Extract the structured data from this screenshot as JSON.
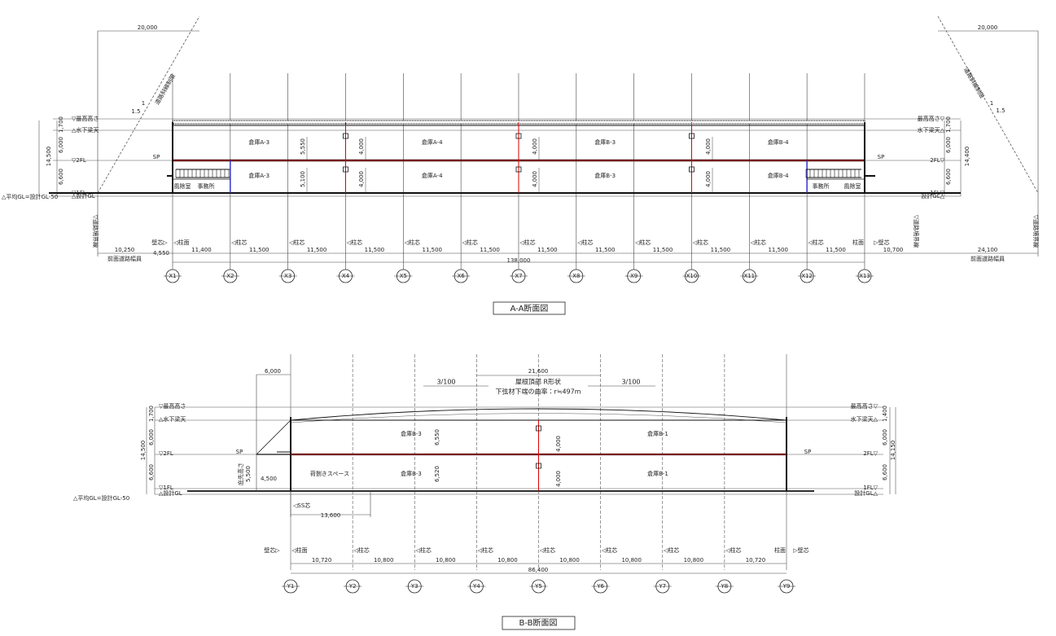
{
  "aa": {
    "title": "A-A断面図",
    "top_dims": [
      "20,000",
      "20,000"
    ],
    "levels_left": [
      "▽最高高さ",
      "△水下梁天",
      "▽2FL",
      "▽1FL",
      "△設計GL"
    ],
    "levels_right": [
      "最高高さ▽",
      "水下梁天△",
      "2FL▽",
      "1FL▽",
      "設計GL△"
    ],
    "avg_gl": "△平均GL=設計GL-50",
    "heights_left": {
      "total": "14,500",
      "parts": [
        "1,700",
        "6,000",
        "6,600"
      ]
    },
    "heights_right": {
      "total": "14,400",
      "parts": [
        "1,700",
        "6,000",
        "6,600"
      ]
    },
    "slope_left": [
      "1",
      "1.5"
    ],
    "slope_right": [
      "1",
      "1.5"
    ],
    "road_limit": [
      "道路斜線制限",
      "道路斜線制限"
    ],
    "road_boundary": [
      "▽道路境界線",
      "▽道路境界線",
      "▽道路境界線"
    ],
    "road_width": [
      "前面道路幅員",
      "前面道路幅員"
    ],
    "setbacks": [
      "10,250",
      "4,550",
      "10,700",
      "24,100"
    ],
    "grid": [
      "X1",
      "X2",
      "X3",
      "X4",
      "X5",
      "X6",
      "X7",
      "X8",
      "X9",
      "X10",
      "X11",
      "X12",
      "X13"
    ],
    "spans": [
      "11,400",
      "11,500",
      "11,500",
      "11,500",
      "11,500",
      "11,500",
      "11,500",
      "11,500",
      "11,500",
      "11,500",
      "11,500",
      "11,500"
    ],
    "total": "138,000",
    "wall_labels": [
      "壁芯▷",
      "▷壁芯"
    ],
    "col_labels": [
      "◁柱面",
      "◁柱芯",
      "◁柱芯",
      "◁柱芯",
      "◁柱芯",
      "◁柱芯",
      "◁柱芯",
      "◁柱芯",
      "◁柱芯",
      "◁柱芯",
      "◁柱芯",
      "◁柱芯",
      "柱面"
    ],
    "rooms_2f": [
      "倉庫A-3",
      "倉庫A-4",
      "倉庫B-3",
      "倉庫B-4"
    ],
    "rooms_1f": [
      "倉庫A-3",
      "倉庫A-4",
      "倉庫B-3",
      "倉庫B-4"
    ],
    "offices": [
      "風除室",
      "事務所",
      "事務所",
      "風除室"
    ],
    "col_dims_2f": [
      "5,550",
      "4,000",
      "4,000",
      "4,000"
    ],
    "col_dims_1f": [
      "5,100",
      "4,000",
      "4,000",
      "4,000"
    ],
    "sp": [
      "SP",
      "SP"
    ]
  },
  "bb": {
    "title": "B-B断面図",
    "eave_dim": "6,000",
    "roof_dim": "21,600",
    "slopes": [
      "3/100",
      "3/100"
    ],
    "roof_note": [
      "屋根頂部 R形状",
      "下弦材下端の曲率：r≒497m"
    ],
    "levels_left": [
      "▽最高高さ",
      "△水下梁天",
      "▽2FL",
      "▽1FL",
      "△設計GL"
    ],
    "levels_right": [
      "最高高さ▽",
      "水下梁天△",
      "2FL▽",
      "1FL▽",
      "設計GL△"
    ],
    "avg_gl": "△平均GL=設計GL-50",
    "heights_left": {
      "total": "14,500",
      "parts": [
        "1,700",
        "6,000",
        "6,600"
      ]
    },
    "heights_right": {
      "total": "14,150",
      "parts": [
        "1,400",
        "6,000",
        "6,600"
      ]
    },
    "rooms_2f": [
      "倉庫B-3",
      "倉庫B-1"
    ],
    "rooms_1f": [
      "荷捌きスペース",
      "倉庫B-3",
      "倉庫B-1"
    ],
    "col_dims": [
      "6,550",
      "6,520",
      "4,000",
      "4,000"
    ],
    "canopy": [
      "庇先高さ",
      "5,500",
      "4,500"
    ],
    "ss": [
      "◁SS芯",
      "13,600"
    ],
    "grid": [
      "Y1",
      "Y2",
      "Y3",
      "Y4",
      "Y5",
      "Y6",
      "Y7",
      "Y8",
      "Y9"
    ],
    "spans": [
      "10,720",
      "10,800",
      "10,800",
      "10,800",
      "10,800",
      "10,800",
      "10,800",
      "10,720"
    ],
    "total": "86,400",
    "wall_labels": [
      "壁芯▷",
      "▷壁芯"
    ],
    "col_labels": [
      "◁柱面",
      "◁柱芯",
      "◁柱芯",
      "◁柱芯",
      "◁柱芯",
      "◁柱芯",
      "◁柱芯",
      "◁柱芯",
      "柱面"
    ],
    "sp": [
      "SP",
      "SP"
    ]
  }
}
